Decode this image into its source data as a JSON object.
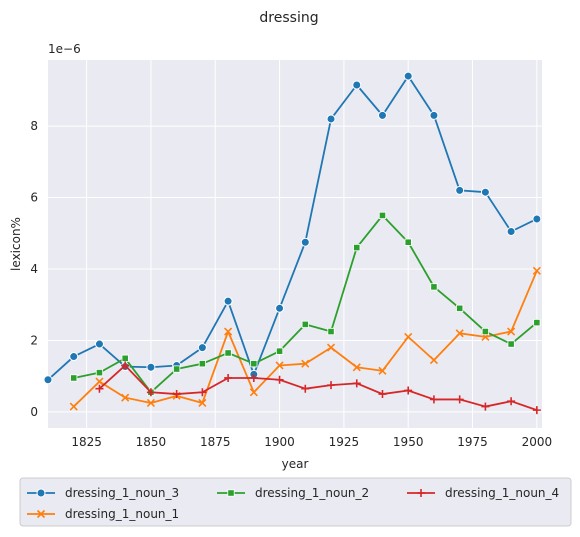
{
  "chart_data": {
    "type": "line",
    "title": "dressing",
    "xlabel": "year",
    "ylabel": "lexicon%",
    "y_scale_label": "1e−6",
    "xlim": [
      1810,
      2002
    ],
    "ylim": [
      -0.45,
      9.85
    ],
    "x_ticks": [
      1825,
      1850,
      1875,
      1900,
      1925,
      1950,
      1975,
      2000
    ],
    "y_ticks": [
      0,
      2,
      4,
      6,
      8
    ],
    "grid": true,
    "legend_position": "bottom",
    "series": [
      {
        "name": "dressing_1_noun_3",
        "color": "#1f77b4",
        "marker": "circle",
        "x": [
          1810,
          1820,
          1830,
          1840,
          1850,
          1860,
          1870,
          1880,
          1890,
          1900,
          1910,
          1920,
          1930,
          1940,
          1950,
          1960,
          1970,
          1980,
          1990,
          2000
        ],
        "y": [
          0.9,
          1.55,
          1.9,
          1.27,
          1.25,
          1.3,
          1.8,
          3.1,
          1.05,
          2.9,
          4.75,
          8.2,
          9.15,
          8.3,
          9.4,
          8.3,
          6.2,
          6.15,
          5.05,
          5.4
        ]
      },
      {
        "name": "dressing_1_noun_1",
        "color": "#ff7f0e",
        "marker": "x",
        "x": [
          1820,
          1830,
          1840,
          1850,
          1860,
          1870,
          1880,
          1890,
          1900,
          1910,
          1920,
          1930,
          1940,
          1950,
          1960,
          1970,
          1980,
          1990,
          2000
        ],
        "y": [
          0.15,
          0.85,
          0.4,
          0.25,
          0.45,
          0.25,
          2.25,
          0.55,
          1.3,
          1.35,
          1.8,
          1.25,
          1.15,
          2.1,
          1.45,
          2.2,
          2.1,
          2.25,
          3.95
        ]
      },
      {
        "name": "dressing_1_noun_2",
        "color": "#2ca02c",
        "marker": "square",
        "x": [
          1820,
          1830,
          1840,
          1850,
          1860,
          1870,
          1880,
          1890,
          1900,
          1910,
          1920,
          1930,
          1940,
          1950,
          1960,
          1970,
          1980,
          1990,
          2000
        ],
        "y": [
          0.95,
          1.1,
          1.5,
          0.55,
          1.2,
          1.35,
          1.65,
          1.35,
          1.7,
          2.45,
          2.25,
          4.6,
          5.5,
          4.75,
          3.5,
          2.9,
          2.25,
          1.9,
          2.5
        ]
      },
      {
        "name": "dressing_1_noun_4",
        "color": "#d62728",
        "marker": "plus",
        "x": [
          1830,
          1840,
          1850,
          1860,
          1870,
          1880,
          1890,
          1900,
          1910,
          1920,
          1930,
          1940,
          1950,
          1960,
          1970,
          1980,
          1990,
          2000
        ],
        "y": [
          0.65,
          1.3,
          0.55,
          0.5,
          0.55,
          0.95,
          0.95,
          0.9,
          0.65,
          0.75,
          0.8,
          0.5,
          0.6,
          0.35,
          0.35,
          0.15,
          0.3,
          0.05
        ]
      }
    ],
    "legend_order": [
      0,
      2,
      3,
      1
    ]
  }
}
